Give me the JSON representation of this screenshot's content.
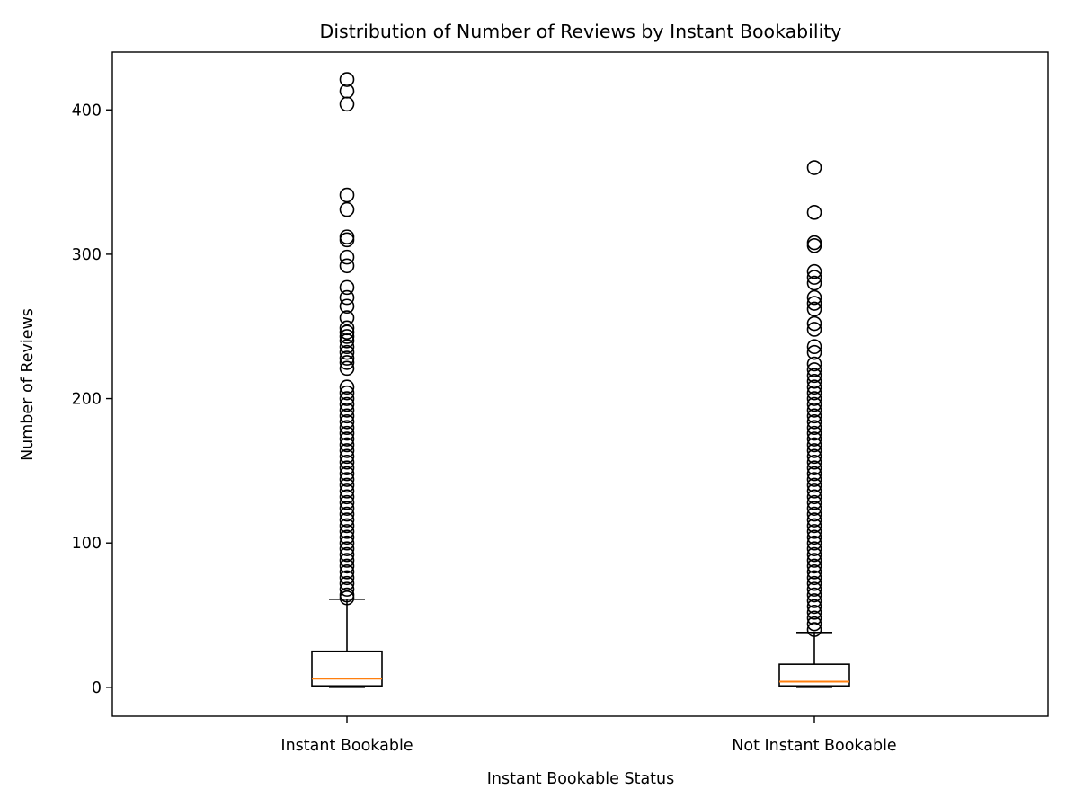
{
  "chart_data": {
    "type": "box",
    "title": "Distribution of Number of Reviews by Instant Bookability",
    "xlabel": "Instant Bookable Status",
    "ylabel": "Number of Reviews",
    "ylim": [
      -20,
      440
    ],
    "yticks": [
      0,
      100,
      200,
      300,
      400
    ],
    "grid": false,
    "median_color": "#ff7f0e",
    "line_color": "#000000",
    "categories": [
      "Instant Bookable",
      "Not Instant Bookable"
    ],
    "boxes": [
      {
        "category": "Instant Bookable",
        "whisker_low": 0,
        "q1": 1,
        "median": 6,
        "q3": 25,
        "whisker_high": 61,
        "fliers": [
          421,
          413,
          404,
          341,
          331,
          312,
          310,
          298,
          292,
          277,
          270,
          264,
          256,
          249,
          246,
          243,
          240,
          236,
          232,
          228,
          225,
          221,
          208,
          204,
          200,
          196,
          192,
          188,
          184,
          180,
          176,
          172,
          168,
          164,
          160,
          156,
          152,
          148,
          144,
          140,
          136,
          132,
          128,
          124,
          120,
          116,
          112,
          108,
          104,
          100,
          96,
          92,
          88,
          84,
          80,
          76,
          72,
          68,
          64,
          62
        ]
      },
      {
        "category": "Not Instant Bookable",
        "whisker_low": 0,
        "q1": 1,
        "median": 4,
        "q3": 16,
        "whisker_high": 38,
        "fliers": [
          360,
          329,
          308,
          306,
          288,
          284,
          280,
          270,
          266,
          262,
          252,
          248,
          236,
          232,
          224,
          220,
          216,
          212,
          208,
          204,
          200,
          196,
          192,
          188,
          184,
          180,
          176,
          172,
          168,
          164,
          160,
          156,
          152,
          148,
          144,
          140,
          136,
          132,
          128,
          124,
          120,
          116,
          112,
          108,
          104,
          100,
          96,
          92,
          88,
          84,
          80,
          76,
          72,
          68,
          64,
          60,
          56,
          52,
          48,
          44,
          40
        ]
      }
    ]
  }
}
